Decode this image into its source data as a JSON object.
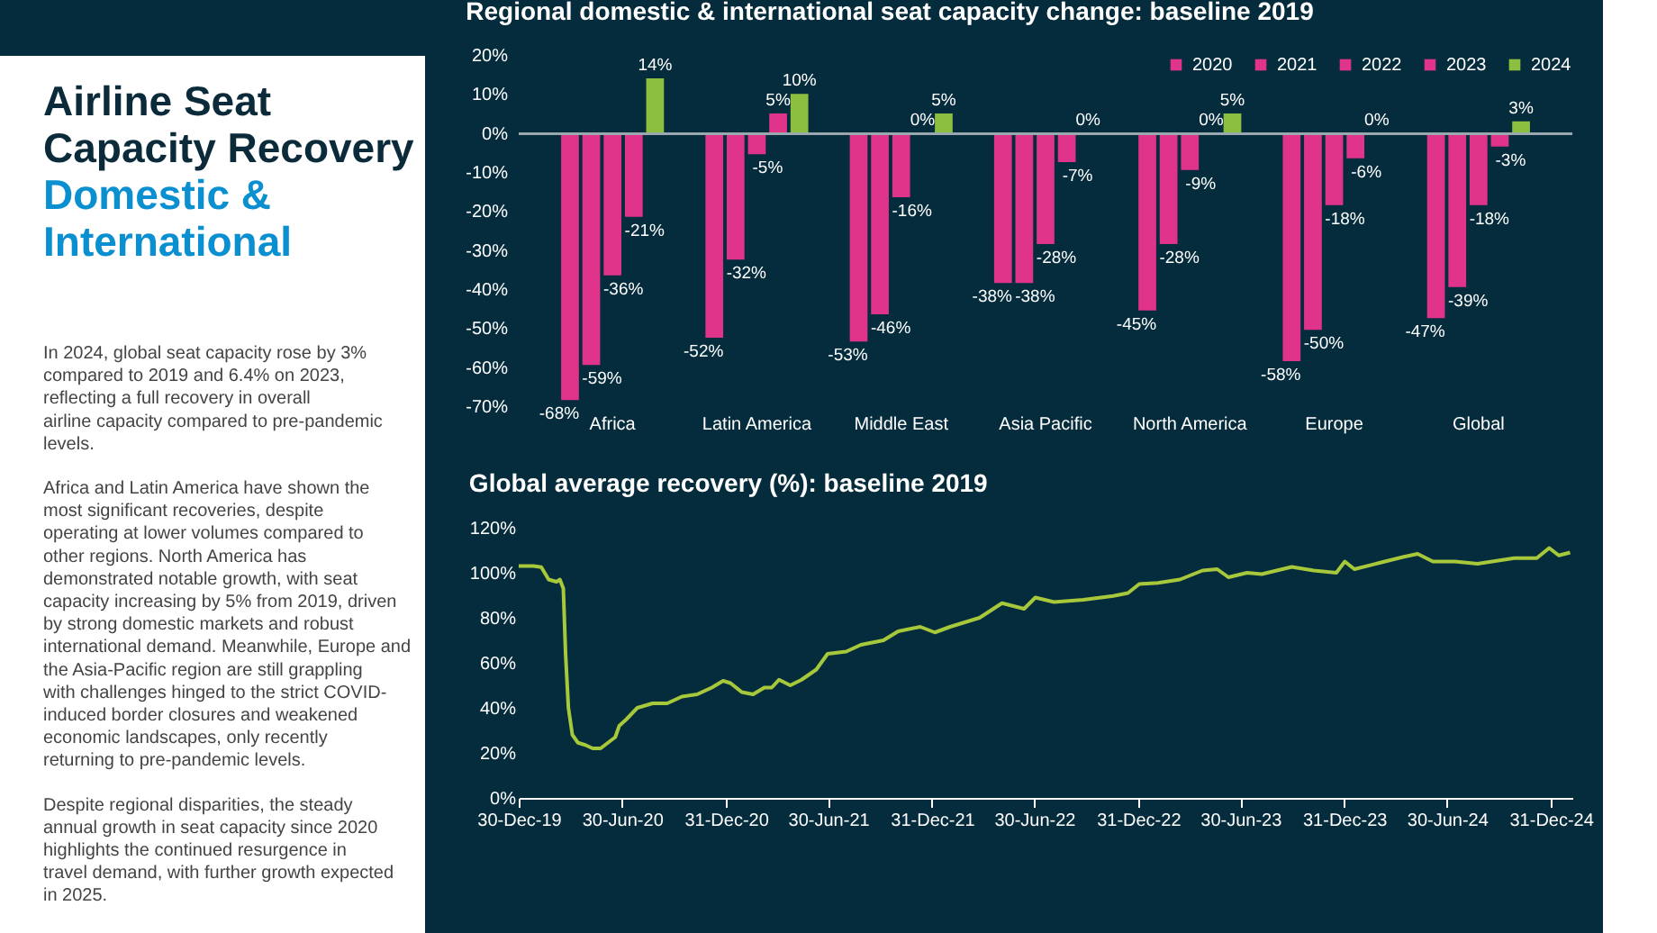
{
  "chart_data": [
    {
      "type": "other",
      "title": "Airline Seat Capacity Recovery",
      "subtitle": "Domestic & International",
      "annotations": [
        "In 2024, global seat capacity rose by 3% compared to 2019 and 6.4% on 2023, reflecting a full recovery in overall airline capacity compared to pre-pandemic levels.",
        "Africa and Latin America have shown the most significant recoveries, despite operating at lower volumes compared to other regions. North America has demonstrated notable growth, with seat capacity increasing by 5% from 2019, driven by strong domestic markets and robust international demand. Meanwhile, Europe and the Asia-Pacific region are still grappling with challenges hinged to the strict COVID-induced border closures and weakened economic landscapes, only recently returning to pre-pandemic levels.",
        "Despite regional disparities, the steady annual growth in seat capacity since 2020 highlights the continued resurgence in travel demand, with further growth expected in 2025."
      ]
    },
    {
      "type": "bar",
      "title": "Regional domestic & international seat capacity change: baseline 2019",
      "categories": [
        "Africa",
        "Latin America",
        "Middle East",
        "Asia Pacific",
        "North America",
        "Europe",
        "Global"
      ],
      "series": [
        {
          "name": "2020",
          "color": "#e0338a",
          "values": [
            -68,
            -52,
            -53,
            -38,
            -45,
            -58,
            -47
          ],
          "value_labels": [
            "-68%",
            "-52%",
            "-53%",
            "-38%",
            "-45%",
            "-58%",
            "-47%"
          ]
        },
        {
          "name": "2021",
          "color": "#e0338a",
          "values": [
            -59,
            -32,
            -46,
            -38,
            -28,
            -50,
            -39
          ],
          "value_labels": [
            "-59%",
            "-32%",
            "-46%",
            "-38%",
            "-28%",
            "-50%",
            "-39%"
          ]
        },
        {
          "name": "2022",
          "color": "#e0338a",
          "values": [
            -36,
            -5,
            -16,
            -28,
            -9,
            -18,
            -18
          ],
          "value_labels": [
            "-36%",
            "-5%",
            "-16%",
            "-28%",
            "-9%",
            "-18%",
            "-18%"
          ]
        },
        {
          "name": "2023",
          "color": "#e0338a",
          "values": [
            -21,
            5,
            0,
            -7,
            0,
            -6,
            -3
          ],
          "value_labels": [
            "-21%",
            "5%",
            "0%",
            "-7%",
            "0%",
            "-6%",
            "-3%"
          ]
        },
        {
          "name": "2024",
          "color": "#8cbf3f",
          "values": [
            14,
            10,
            5,
            0,
            5,
            0,
            3
          ],
          "value_labels": [
            "14%",
            "10%",
            "5%",
            "0%",
            "5%",
            "0%",
            "3%"
          ]
        }
      ],
      "ylim": [
        -70,
        20
      ],
      "yticks": [
        {
          "value": -70,
          "label": "-70%"
        },
        {
          "value": -60,
          "label": "-60%"
        },
        {
          "value": -50,
          "label": "-50%"
        },
        {
          "value": -40,
          "label": "-40%"
        },
        {
          "value": -30,
          "label": "-30%"
        },
        {
          "value": -20,
          "label": "-20%"
        },
        {
          "value": -10,
          "label": "-10%"
        },
        {
          "value": 0,
          "label": "0%"
        },
        {
          "value": 10,
          "label": "10%"
        },
        {
          "value": 20,
          "label": "20%"
        }
      ],
      "legend": "top right"
    },
    {
      "type": "line",
      "title": "Global average recovery (%): baseline 2019",
      "x": [
        "2019-12-30",
        "2020-01-25",
        "2020-02-08",
        "2020-02-21",
        "2020-03-06",
        "2020-03-12",
        "2020-03-18",
        "2020-03-22",
        "2020-03-27",
        "2020-04-03",
        "2020-04-13",
        "2020-04-26",
        "2020-05-09",
        "2020-05-23",
        "2020-06-05",
        "2020-06-18",
        "2020-06-25",
        "2020-07-08",
        "2020-07-27",
        "2020-08-23",
        "2020-09-18",
        "2020-10-14",
        "2020-11-10",
        "2020-12-06",
        "2020-12-26",
        "2021-01-08",
        "2021-01-28",
        "2021-02-17",
        "2021-03-09",
        "2021-03-22",
        "2021-04-04",
        "2021-04-24",
        "2021-05-14",
        "2021-06-09",
        "2021-06-29",
        "2021-08-01",
        "2021-08-27",
        "2021-10-06",
        "2021-11-01",
        "2021-12-10",
        "2022-01-05",
        "2022-02-01",
        "2022-02-27",
        "2022-03-25",
        "2022-05-04",
        "2022-06-12",
        "2022-07-02",
        "2022-08-04",
        "2022-09-25",
        "2022-11-17",
        "2022-12-13",
        "2023-01-02",
        "2023-02-04",
        "2023-03-15",
        "2023-04-24",
        "2023-05-20",
        "2023-06-09",
        "2023-07-12",
        "2023-08-07",
        "2023-09-29",
        "2023-11-07",
        "2023-12-17",
        "2024-01-01",
        "2024-01-18",
        "2024-03-04",
        "2024-04-13",
        "2024-05-09",
        "2024-06-05",
        "2024-07-14",
        "2024-08-23",
        "2024-10-27",
        "2024-12-06",
        "2024-12-28",
        "2025-01-14",
        "2025-02-03"
      ],
      "series": [
        {
          "color": "#a6c83a",
          "values": [
            103,
            103,
            102.5,
            97,
            96,
            97,
            93,
            64,
            40,
            28,
            24.5,
            23.5,
            22,
            22,
            24.5,
            27,
            32,
            35,
            40,
            42,
            42,
            45,
            46,
            49,
            52,
            51,
            47,
            46,
            49,
            49,
            52.5,
            50,
            52.5,
            57,
            64,
            65,
            68,
            70,
            74,
            76,
            73.5,
            76,
            78,
            80,
            86.5,
            84,
            89,
            87,
            88,
            89.7,
            91,
            95,
            95.5,
            97,
            101,
            101.6,
            98,
            100,
            99.4,
            102.6,
            101,
            100,
            105,
            101.6,
            104.5,
            107,
            108.4,
            105,
            105,
            104,
            106.5,
            106.5,
            111,
            107.7,
            109
          ]
        }
      ],
      "xlim": [
        "2019-12-30",
        "2025-02-07"
      ],
      "xticks": [
        {
          "value": "2019-12-30",
          "label": "30-Dec-19"
        },
        {
          "value": "2020-06-30",
          "label": "30-Jun-20"
        },
        {
          "value": "2020-12-31",
          "label": "31-Dec-20"
        },
        {
          "value": "2021-06-30",
          "label": "30-Jun-21"
        },
        {
          "value": "2021-12-31",
          "label": "31-Dec-21"
        },
        {
          "value": "2022-06-30",
          "label": "30-Jun-22"
        },
        {
          "value": "2022-12-31",
          "label": "31-Dec-22"
        },
        {
          "value": "2023-06-30",
          "label": "30-Jun-23"
        },
        {
          "value": "2023-12-31",
          "label": "31-Dec-23"
        },
        {
          "value": "2024-06-30",
          "label": "30-Jun-24"
        },
        {
          "value": "2024-12-31",
          "label": "31-Dec-24"
        }
      ],
      "ylim": [
        0,
        120
      ],
      "yticks": [
        {
          "value": 0,
          "label": "0%"
        },
        {
          "value": 20,
          "label": "20%"
        },
        {
          "value": 40,
          "label": "40%"
        },
        {
          "value": 60,
          "label": "60%"
        },
        {
          "value": 80,
          "label": "80%"
        },
        {
          "value": 100,
          "label": "100%"
        },
        {
          "value": 120,
          "label": "120%"
        }
      ]
    }
  ]
}
